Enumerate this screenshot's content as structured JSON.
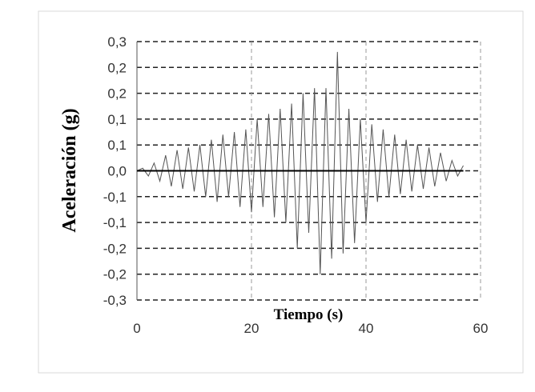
{
  "chart_data": {
    "type": "line",
    "title": "",
    "xlabel": "Tiempo (s)",
    "ylabel": "Aceleración (g)",
    "xlim": [
      0,
      60
    ],
    "ylim": [
      -0.25,
      0.25
    ],
    "x_ticks": [
      0,
      20,
      40,
      60
    ],
    "x_tick_labels": [
      "0",
      "20",
      "40",
      "60"
    ],
    "y_ticks": [
      -0.25,
      -0.2,
      -0.15,
      -0.1,
      -0.05,
      0.0,
      0.05,
      0.1,
      0.15,
      0.2,
      0.25
    ],
    "y_tick_labels": [
      "-0,3",
      "-0,2",
      "-0,2",
      "-0,1",
      "-0,1",
      "0,0",
      "0,1",
      "0,1",
      "0,2",
      "0,2",
      "0,3"
    ],
    "grid": {
      "horizontal": "dashed",
      "vertical": "dashed"
    },
    "legend": "none",
    "colors": {
      "line": "#555555",
      "grid": "#222222",
      "vgrid": "#999999",
      "frame": "#d9d9d9"
    },
    "series": [
      {
        "x": [
          0,
          1,
          2,
          3,
          4,
          5,
          6,
          7,
          8,
          9,
          10,
          11,
          12,
          13,
          14,
          15,
          16,
          17,
          18,
          19,
          20,
          21,
          22,
          23,
          24,
          25,
          26,
          27,
          28,
          29,
          30,
          31,
          32,
          33,
          34,
          35,
          36,
          37,
          38,
          39,
          40,
          41,
          42,
          43,
          44,
          45,
          46,
          47,
          48,
          49,
          50,
          51,
          52,
          53,
          54,
          55,
          56,
          57
        ],
        "y": [
          0.0,
          0.005,
          -0.01,
          0.015,
          -0.02,
          0.03,
          -0.03,
          0.04,
          -0.035,
          0.045,
          -0.04,
          0.05,
          -0.05,
          0.06,
          -0.06,
          0.07,
          -0.05,
          0.075,
          -0.07,
          0.08,
          -0.08,
          0.1,
          -0.07,
          0.11,
          -0.09,
          0.12,
          -0.1,
          0.13,
          -0.15,
          0.15,
          -0.12,
          0.16,
          -0.2,
          0.16,
          -0.17,
          0.23,
          -0.16,
          0.12,
          -0.14,
          0.1,
          -0.1,
          0.09,
          -0.06,
          0.08,
          -0.05,
          0.07,
          -0.045,
          0.06,
          -0.04,
          0.05,
          -0.035,
          0.045,
          -0.03,
          0.035,
          -0.02,
          0.02,
          -0.01,
          0.01
        ]
      }
    ]
  }
}
